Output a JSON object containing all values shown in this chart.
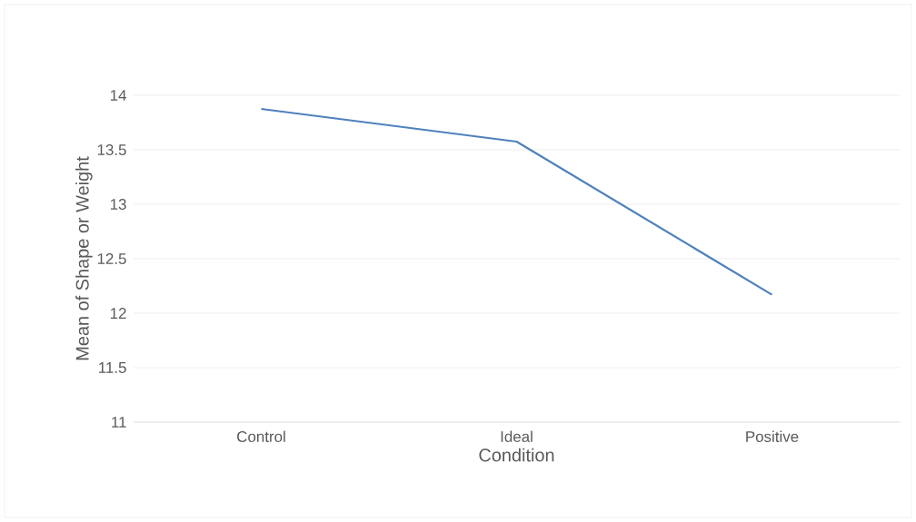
{
  "chart_data": {
    "type": "line",
    "xlabel": "Condition",
    "ylabel": "Mean of Shape or Weight",
    "categories": [
      "Control",
      "Ideal",
      "Positive"
    ],
    "series": [
      {
        "color": "#4f81bd",
        "values": [
          13.875,
          13.575,
          12.17
        ]
      }
    ],
    "ylim": [
      11,
      14
    ],
    "yticks": [
      11,
      11.5,
      12,
      12.5,
      13,
      13.5,
      14
    ],
    "grid": "y"
  }
}
